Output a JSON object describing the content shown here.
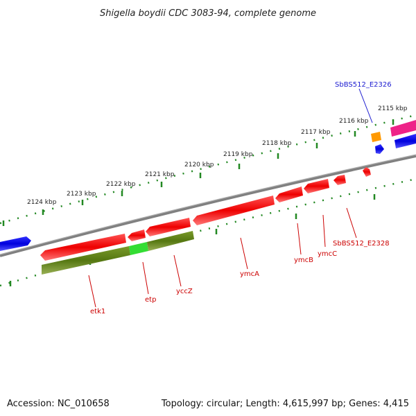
{
  "title": "Shigella boydii CDC 3083-94, complete genome",
  "footer": {
    "accession": "Accession: NC_010658",
    "summary": "Topology: circular; Length: 4,615,997 bp; Genes: 4,415"
  },
  "ticks": [
    "2124 kbp",
    "2123 kbp",
    "2122 kbp",
    "2121 kbp",
    "2120 kbp",
    "2119 kbp",
    "2118 kbp",
    "2117 kbp",
    "2116 kbp",
    "2115 kbp"
  ],
  "genes": {
    "etk1": "etk1",
    "etp": "etp",
    "yccZ": "yccZ",
    "ymcA": "ymcA",
    "ymcB": "ymcB",
    "ymcC": "ymcC",
    "sb2328": "SbBS512_E2328",
    "sb2326": "SbBS512_E2326"
  },
  "colors": {
    "cds_red": "#ee1111",
    "olive": "#6b8e23",
    "green": "#33dd33",
    "blue": "#1111ee",
    "orange": "#ff9900",
    "magenta": "#ee2288",
    "backbone": "#808080",
    "tick": "#228822"
  }
}
